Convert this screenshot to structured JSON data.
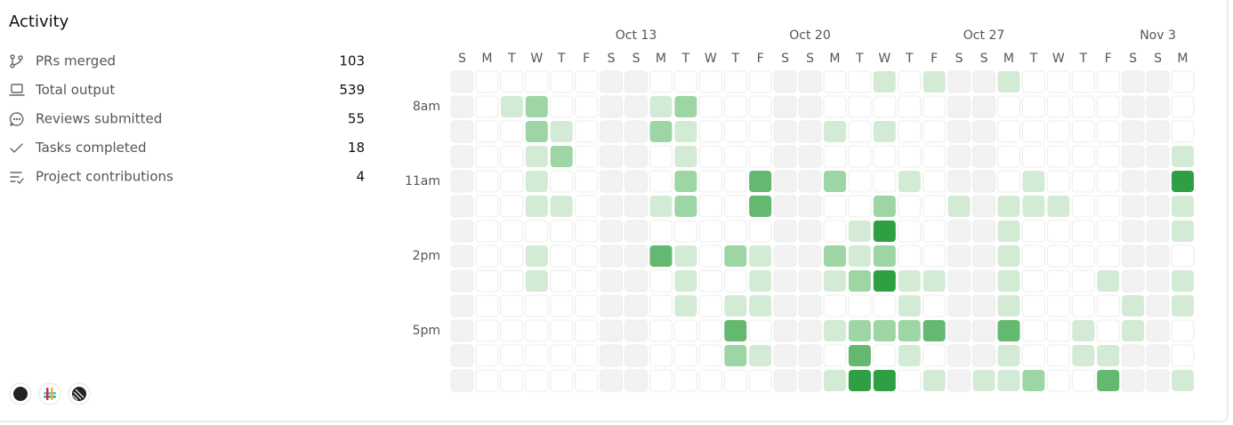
{
  "title": "Activity",
  "stats": [
    {
      "label": "PRs merged",
      "value": 103
    },
    {
      "label": "Total output",
      "value": 539
    },
    {
      "label": "Reviews submitted",
      "value": 55
    },
    {
      "label": "Tasks completed",
      "value": 18
    },
    {
      "label": "Project contributions",
      "value": 4
    }
  ],
  "heatmap": {
    "date_labels": [
      null,
      null,
      null,
      null,
      null,
      null,
      null,
      "Oct 13",
      null,
      null,
      null,
      null,
      null,
      null,
      "Oct 20",
      null,
      null,
      null,
      null,
      null,
      null,
      "Oct 27",
      null,
      null,
      null,
      null,
      null,
      null,
      "Nov 3",
      null
    ],
    "day_labels": [
      "S",
      "M",
      "T",
      "W",
      "T",
      "F",
      "S",
      "S",
      "M",
      "T",
      "W",
      "T",
      "F",
      "S",
      "S",
      "M",
      "T",
      "W",
      "T",
      "F",
      "S",
      "S",
      "M",
      "T",
      "W",
      "T",
      "F",
      "S",
      "S",
      "M"
    ],
    "hour_labels": [
      null,
      "8am",
      null,
      null,
      "11am",
      null,
      null,
      "2pm",
      null,
      null,
      "5pm",
      null,
      null
    ],
    "colors": [
      "#ffffff",
      "#d3ebd5",
      "#9dd6a4",
      "#64b870",
      "#2ea043"
    ],
    "weekend_color": "#f2f2f2",
    "values": [
      [
        0,
        0,
        0,
        0,
        0,
        0,
        0,
        0,
        0,
        0,
        0,
        0,
        0,
        0,
        0,
        0,
        0,
        1,
        0,
        1,
        0,
        0,
        1,
        0,
        0,
        0,
        0,
        0,
        0,
        0
      ],
      [
        0,
        0,
        1,
        2,
        0,
        0,
        0,
        0,
        1,
        2,
        0,
        0,
        0,
        0,
        0,
        0,
        0,
        0,
        0,
        0,
        0,
        0,
        0,
        0,
        0,
        0,
        0,
        0,
        0,
        0
      ],
      [
        0,
        0,
        0,
        2,
        1,
        0,
        0,
        0,
        2,
        1,
        0,
        0,
        0,
        0,
        0,
        1,
        0,
        1,
        0,
        0,
        0,
        0,
        0,
        0,
        0,
        0,
        0,
        0,
        0,
        0
      ],
      [
        0,
        0,
        0,
        1,
        2,
        0,
        0,
        0,
        0,
        1,
        0,
        0,
        0,
        0,
        0,
        0,
        0,
        0,
        0,
        0,
        0,
        0,
        0,
        0,
        0,
        0,
        0,
        0,
        0,
        1
      ],
      [
        0,
        0,
        0,
        1,
        0,
        0,
        0,
        0,
        0,
        2,
        0,
        0,
        3,
        0,
        0,
        2,
        0,
        0,
        1,
        0,
        0,
        0,
        0,
        1,
        0,
        0,
        0,
        0,
        0,
        4
      ],
      [
        0,
        0,
        0,
        1,
        1,
        0,
        0,
        0,
        1,
        2,
        0,
        0,
        3,
        0,
        0,
        0,
        0,
        2,
        0,
        0,
        1,
        0,
        1,
        1,
        1,
        0,
        0,
        0,
        0,
        1
      ],
      [
        0,
        0,
        0,
        0,
        0,
        0,
        0,
        0,
        0,
        0,
        0,
        0,
        0,
        0,
        0,
        0,
        1,
        4,
        0,
        0,
        0,
        0,
        1,
        0,
        0,
        0,
        0,
        0,
        0,
        1
      ],
      [
        0,
        0,
        0,
        1,
        0,
        0,
        0,
        0,
        3,
        1,
        0,
        2,
        1,
        0,
        0,
        2,
        1,
        2,
        0,
        0,
        0,
        0,
        1,
        0,
        0,
        0,
        0,
        0,
        0,
        0
      ],
      [
        0,
        0,
        0,
        1,
        0,
        0,
        0,
        0,
        0,
        1,
        0,
        0,
        1,
        0,
        0,
        1,
        2,
        4,
        1,
        1,
        0,
        0,
        1,
        0,
        0,
        0,
        1,
        0,
        0,
        1
      ],
      [
        0,
        0,
        0,
        0,
        0,
        0,
        0,
        0,
        0,
        1,
        0,
        1,
        1,
        0,
        0,
        0,
        0,
        0,
        1,
        0,
        0,
        0,
        1,
        0,
        0,
        0,
        0,
        1,
        0,
        1
      ],
      [
        0,
        0,
        0,
        0,
        0,
        0,
        0,
        0,
        0,
        0,
        0,
        3,
        0,
        0,
        0,
        1,
        2,
        2,
        2,
        3,
        0,
        0,
        3,
        0,
        0,
        1,
        0,
        1,
        0,
        0
      ],
      [
        0,
        0,
        0,
        0,
        0,
        0,
        0,
        0,
        0,
        0,
        0,
        2,
        1,
        0,
        0,
        0,
        3,
        0,
        1,
        0,
        0,
        0,
        1,
        0,
        0,
        1,
        1,
        0,
        0,
        0
      ],
      [
        0,
        0,
        0,
        0,
        0,
        0,
        0,
        0,
        0,
        0,
        0,
        0,
        0,
        0,
        0,
        1,
        4,
        4,
        0,
        1,
        0,
        1,
        1,
        2,
        0,
        0,
        3,
        0,
        0,
        1
      ]
    ]
  }
}
